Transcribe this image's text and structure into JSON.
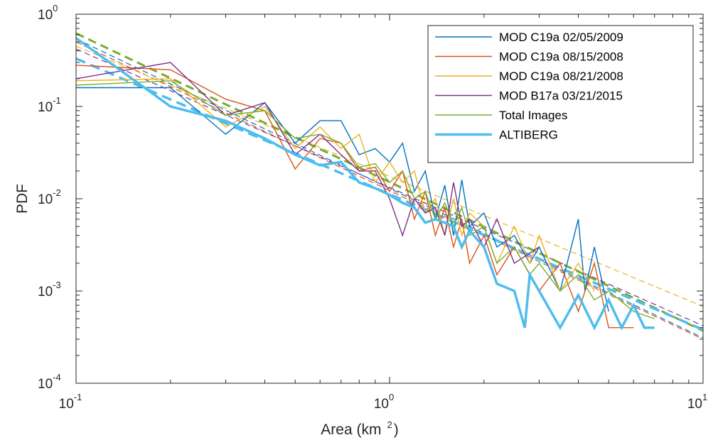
{
  "chart_data": {
    "type": "line",
    "xscale": "log",
    "yscale": "log",
    "xlim": [
      0.1,
      10
    ],
    "ylim": [
      0.0001,
      1
    ],
    "xlabel": "Area (km",
    "xlabel_exp": "2",
    "xlabel_close": ")",
    "ylabel": "PDF",
    "legend_position": "top-right",
    "xticks": [
      {
        "value": 0.1,
        "base": "10",
        "exp": "-1"
      },
      {
        "value": 1,
        "base": "10",
        "exp": "0"
      },
      {
        "value": 10,
        "base": "10",
        "exp": "1"
      }
    ],
    "yticks": [
      {
        "value": 1,
        "base": "10",
        "exp": "0"
      },
      {
        "value": 0.1,
        "base": "10",
        "exp": "-1"
      },
      {
        "value": 0.01,
        "base": "10",
        "exp": "-2"
      },
      {
        "value": 0.001,
        "base": "10",
        "exp": "-3"
      },
      {
        "value": 0.0001,
        "base": "10",
        "exp": "-4"
      }
    ],
    "series": [
      {
        "name": "MOD C19a 02/05/2009",
        "color": "#0072BD",
        "x": [
          0.1,
          0.2,
          0.3,
          0.4,
          0.5,
          0.6,
          0.7,
          0.8,
          0.9,
          1.0,
          1.1,
          1.2,
          1.3,
          1.4,
          1.5,
          1.6,
          1.7,
          1.8,
          2.0,
          2.2,
          2.5,
          2.8,
          3.0,
          3.5,
          4.0,
          4.2,
          4.5,
          5.0
        ],
        "y": [
          0.16,
          0.16,
          0.05,
          0.11,
          0.04,
          0.07,
          0.07,
          0.03,
          0.035,
          0.025,
          0.04,
          0.012,
          0.02,
          0.006,
          0.014,
          0.004,
          0.016,
          0.005,
          0.007,
          0.003,
          0.004,
          0.002,
          0.003,
          0.001,
          0.006,
          0.001,
          0.003,
          0.0006
        ],
        "fit": [
          0.54,
          0.00031
        ]
      },
      {
        "name": "MOD C19a 08/15/2008",
        "color": "#D95319",
        "x": [
          0.1,
          0.2,
          0.3,
          0.4,
          0.5,
          0.6,
          0.7,
          0.8,
          0.9,
          1.0,
          1.1,
          1.2,
          1.3,
          1.4,
          1.5,
          1.6,
          1.7,
          1.8,
          2.0,
          2.2,
          2.5,
          3.0,
          3.5,
          4.0,
          4.5,
          5.0,
          6.0
        ],
        "y": [
          0.28,
          0.25,
          0.12,
          0.09,
          0.021,
          0.045,
          0.04,
          0.02,
          0.022,
          0.012,
          0.02,
          0.006,
          0.012,
          0.004,
          0.008,
          0.003,
          0.006,
          0.002,
          0.004,
          0.0015,
          0.003,
          0.001,
          0.002,
          0.0006,
          0.002,
          0.0004,
          0.0004
        ],
        "fit": [
          0.5,
          0.0003
        ]
      },
      {
        "name": "MOD C19a 08/21/2008",
        "color": "#EDB120",
        "x": [
          0.1,
          0.2,
          0.3,
          0.4,
          0.5,
          0.6,
          0.7,
          0.8,
          0.9,
          1.0,
          1.1,
          1.2,
          1.3,
          1.4,
          1.5,
          1.6,
          1.7,
          1.8,
          2.0,
          2.2,
          2.5,
          2.8,
          3.0,
          3.5,
          4.0,
          4.5
        ],
        "y": [
          0.19,
          0.2,
          0.06,
          0.1,
          0.035,
          0.06,
          0.035,
          0.05,
          0.015,
          0.025,
          0.015,
          0.02,
          0.007,
          0.01,
          0.004,
          0.01,
          0.004,
          0.007,
          0.005,
          0.002,
          0.005,
          0.002,
          0.004,
          0.001,
          0.002,
          0.001
        ],
        "fit": [
          0.45,
          0.00068
        ]
      },
      {
        "name": "MOD B17a 03/21/2015",
        "color": "#7E2F8E",
        "x": [
          0.1,
          0.2,
          0.3,
          0.4,
          0.5,
          0.6,
          0.7,
          0.8,
          0.9,
          1.0,
          1.1,
          1.2,
          1.3,
          1.4,
          1.5,
          1.6,
          1.7,
          1.8,
          2.0,
          2.2,
          2.5,
          3.0
        ],
        "y": [
          0.2,
          0.3,
          0.08,
          0.11,
          0.03,
          0.05,
          0.03,
          0.02,
          0.02,
          0.01,
          0.004,
          0.01,
          0.007,
          0.008,
          0.004,
          0.015,
          0.005,
          0.006,
          0.003,
          0.006,
          0.002,
          0.003
        ],
        "fit": [
          0.42,
          0.00042
        ]
      },
      {
        "name": "Total Images",
        "color": "#77AC30",
        "x": [
          0.1,
          0.2,
          0.3,
          0.4,
          0.5,
          0.6,
          0.7,
          0.8,
          0.9,
          1.0,
          1.1,
          1.2,
          1.3,
          1.4,
          1.5,
          1.6,
          1.7,
          1.8,
          2.0,
          2.2,
          2.5,
          2.8,
          3.0,
          3.5,
          4.0,
          4.5,
          5.0,
          6.0,
          7.0
        ],
        "y": [
          0.17,
          0.19,
          0.08,
          0.09,
          0.045,
          0.05,
          0.04,
          0.022,
          0.024,
          0.015,
          0.02,
          0.01,
          0.012,
          0.006,
          0.009,
          0.005,
          0.008,
          0.004,
          0.005,
          0.002,
          0.003,
          0.0015,
          0.002,
          0.001,
          0.0015,
          0.0008,
          0.001,
          0.0006,
          0.0005
        ],
        "fit": [
          0.62,
          0.00037
        ]
      },
      {
        "name": "ALTIBERG",
        "color": "#4DBEEE",
        "thick": true,
        "x": [
          0.1,
          0.2,
          0.3,
          0.4,
          0.5,
          0.6,
          0.7,
          0.8,
          0.9,
          1.0,
          1.1,
          1.2,
          1.3,
          1.4,
          1.5,
          1.6,
          1.7,
          1.8,
          2.0,
          2.2,
          2.5,
          2.7,
          2.8,
          3.0,
          3.5,
          4.0,
          4.5,
          5.0,
          5.5,
          6.0,
          6.5,
          7.0
        ],
        "y": [
          0.55,
          0.1,
          0.07,
          0.045,
          0.03,
          0.023,
          0.025,
          0.015,
          0.013,
          0.011,
          0.009,
          0.008,
          0.0055,
          0.006,
          0.0055,
          0.005,
          0.003,
          0.0045,
          0.003,
          0.0012,
          0.001,
          0.0004,
          0.0015,
          0.001,
          0.0004,
          0.0009,
          0.0004,
          0.0008,
          0.0004,
          0.0007,
          0.0004,
          0.0004
        ],
        "fit": [
          0.33,
          0.00038
        ]
      }
    ]
  }
}
